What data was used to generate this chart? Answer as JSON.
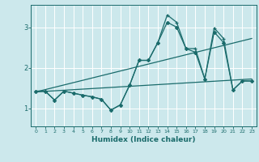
{
  "title": "",
  "xlabel": "Humidex (Indice chaleur)",
  "bg_color": "#cce8ec",
  "grid_color": "#ffffff",
  "line_color": "#1a6b6b",
  "xlim": [
    -0.5,
    23.5
  ],
  "ylim": [
    0.55,
    3.55
  ],
  "yticks": [
    1,
    2,
    3
  ],
  "xticks": [
    0,
    1,
    2,
    3,
    4,
    5,
    6,
    7,
    8,
    9,
    10,
    11,
    12,
    13,
    14,
    15,
    16,
    17,
    18,
    19,
    20,
    21,
    22,
    23
  ],
  "series1_x": [
    0,
    1,
    2,
    3,
    4,
    5,
    6,
    7,
    8,
    9,
    10,
    11,
    12,
    13,
    14,
    15,
    16,
    17,
    18,
    19,
    20,
    21,
    22,
    23
  ],
  "series1_y": [
    1.42,
    1.42,
    1.2,
    1.42,
    1.37,
    1.32,
    1.28,
    1.22,
    0.95,
    1.08,
    1.57,
    2.18,
    2.18,
    2.62,
    3.3,
    3.12,
    2.47,
    2.47,
    1.72,
    2.98,
    2.72,
    1.45,
    1.67,
    1.67
  ],
  "series2_x": [
    0,
    1,
    2,
    3,
    4,
    5,
    6,
    7,
    8,
    9,
    10,
    11,
    12,
    13,
    14,
    15,
    16,
    17,
    18,
    19,
    20,
    21,
    22,
    23
  ],
  "series2_y": [
    1.42,
    1.42,
    1.2,
    1.42,
    1.37,
    1.32,
    1.28,
    1.22,
    0.95,
    1.08,
    1.57,
    2.18,
    2.18,
    2.62,
    3.12,
    3.0,
    2.47,
    2.38,
    1.72,
    2.88,
    2.62,
    1.45,
    1.67,
    1.67
  ],
  "trend1_x": [
    0,
    23
  ],
  "trend1_y": [
    1.4,
    2.72
  ],
  "trend2_x": [
    0,
    23
  ],
  "trend2_y": [
    1.4,
    1.72
  ]
}
